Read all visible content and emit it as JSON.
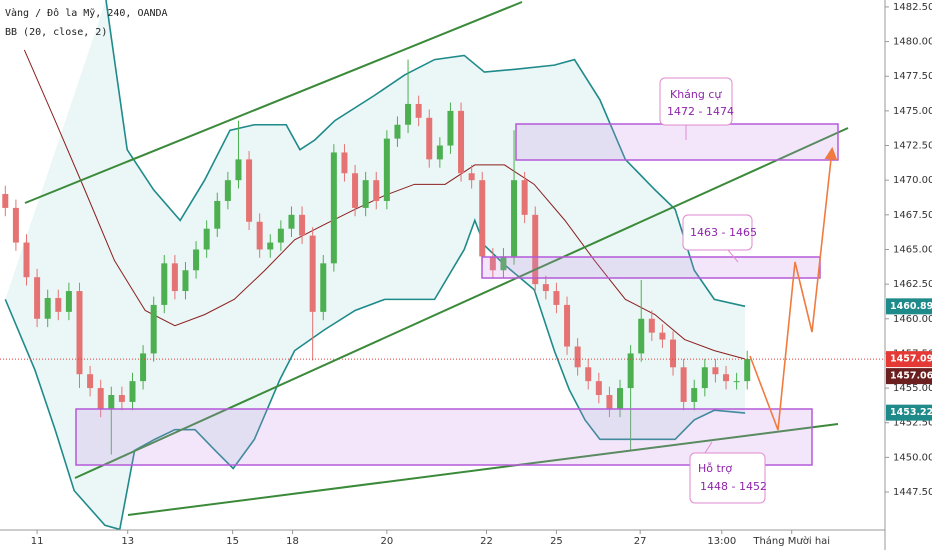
{
  "chart_data": {
    "type": "candlestick",
    "title": "Vàng / Đô la Mỹ, 240, OANDA",
    "subtitle": "BB (20, close, 2)",
    "up_color": "#4caf50",
    "down_color": "#e57373",
    "open": [
      1469.0,
      1468.0,
      1465.5,
      1463.0,
      1460.0,
      1461.5,
      1460.5,
      1462.0,
      1456.0,
      1455.0,
      1453.5,
      1454.5,
      1454.0,
      1455.5,
      1457.5,
      1461.0,
      1464.0,
      1462.0,
      1463.5,
      1465.0,
      1466.5,
      1468.5,
      1470.0,
      1471.5,
      1467.0,
      1465.0,
      1465.5,
      1466.5,
      1467.5,
      1466.0,
      1460.5,
      1464.0,
      1472.0,
      1470.5,
      1468.0,
      1470.0,
      1468.5,
      1473.0,
      1474.0,
      1475.5,
      1474.5,
      1471.5,
      1472.5,
      1475.0,
      1470.5,
      1470.0,
      1464.5,
      1463.5,
      1464.5,
      1470.0,
      1467.5,
      1462.5,
      1462.0,
      1461.0,
      1458.0,
      1456.5,
      1455.5,
      1454.5,
      1453.5,
      1455.0,
      1457.5,
      1460.0,
      1459.0,
      1458.5,
      1456.5,
      1454.0,
      1455.0,
      1456.5,
      1456.0,
      1455.5,
      1455.5
    ],
    "high": [
      1469.6,
      1468.6,
      1466.1,
      1463.6,
      1462.1,
      1462.1,
      1462.6,
      1462.6,
      1456.6,
      1455.6,
      1455.1,
      1455.1,
      1456.1,
      1458.1,
      1461.6,
      1464.6,
      1464.6,
      1464.1,
      1465.6,
      1467.1,
      1469.1,
      1470.6,
      1474.3,
      1472.1,
      1467.6,
      1466.1,
      1467.1,
      1468.1,
      1468.1,
      1466.6,
      1464.6,
      1472.6,
      1472.6,
      1471.1,
      1470.6,
      1470.6,
      1473.6,
      1474.6,
      1478.7,
      1476.1,
      1475.1,
      1473.1,
      1475.6,
      1475.6,
      1471.1,
      1470.6,
      1465.1,
      1465.1,
      1473.6,
      1470.6,
      1468.1,
      1463.1,
      1462.6,
      1461.6,
      1458.6,
      1457.1,
      1456.1,
      1455.1,
      1455.6,
      1458.1,
      1462.8,
      1460.6,
      1459.6,
      1459.1,
      1457.1,
      1455.6,
      1457.1,
      1457.1,
      1456.6,
      1456.1,
      1457.7
    ],
    "low": [
      1467.4,
      1464.9,
      1462.4,
      1459.4,
      1459.4,
      1459.9,
      1459.9,
      1455.0,
      1454.4,
      1452.9,
      1450.2,
      1453.4,
      1453.4,
      1454.9,
      1456.9,
      1460.4,
      1461.4,
      1461.4,
      1462.9,
      1464.4,
      1465.9,
      1467.9,
      1469.4,
      1466.4,
      1464.4,
      1464.4,
      1464.9,
      1465.9,
      1465.4,
      1457.0,
      1459.9,
      1463.4,
      1469.9,
      1467.4,
      1467.4,
      1467.9,
      1467.9,
      1472.4,
      1473.4,
      1473.9,
      1470.9,
      1470.9,
      1471.9,
      1469.9,
      1469.4,
      1463.9,
      1462.9,
      1462.9,
      1463.9,
      1466.9,
      1461.9,
      1461.4,
      1460.4,
      1457.4,
      1455.9,
      1454.9,
      1453.9,
      1452.9,
      1452.9,
      1450.5,
      1456.9,
      1458.4,
      1457.9,
      1455.9,
      1453.4,
      1453.4,
      1454.4,
      1455.4,
      1454.9,
      1454.9,
      1454.9
    ],
    "close": [
      1468.0,
      1465.5,
      1463.0,
      1460.0,
      1461.5,
      1460.5,
      1462.0,
      1456.0,
      1455.0,
      1453.5,
      1454.5,
      1454.0,
      1455.5,
      1457.5,
      1461.0,
      1464.0,
      1462.0,
      1463.5,
      1465.0,
      1466.5,
      1468.5,
      1470.0,
      1471.5,
      1467.0,
      1465.0,
      1465.5,
      1466.5,
      1467.5,
      1466.0,
      1460.5,
      1464.0,
      1472.0,
      1470.5,
      1468.0,
      1470.0,
      1468.5,
      1473.0,
      1474.0,
      1475.5,
      1474.5,
      1471.5,
      1472.5,
      1475.0,
      1470.5,
      1470.0,
      1464.5,
      1463.5,
      1464.5,
      1470.0,
      1467.5,
      1462.5,
      1462.0,
      1461.0,
      1458.0,
      1456.5,
      1455.5,
      1454.5,
      1453.5,
      1455.0,
      1457.5,
      1460.0,
      1459.0,
      1458.5,
      1456.5,
      1454.0,
      1455.0,
      1456.5,
      1456.0,
      1455.5,
      1455.5,
      1457.1
    ],
    "xlim": [
      0,
      83.5
    ],
    "xticks": [
      {
        "value": 3.5,
        "label": "11"
      },
      {
        "value": 12.05,
        "label": "13"
      },
      {
        "value": 21.95,
        "label": "15"
      },
      {
        "value": 27.6,
        "label": "18"
      },
      {
        "value": 36.5,
        "label": "20"
      },
      {
        "value": 45.9,
        "label": "22"
      },
      {
        "value": 52.5,
        "label": "25"
      },
      {
        "value": 60.4,
        "label": "27"
      },
      {
        "value": 68.1,
        "label": "13:00"
      },
      {
        "value": 74.7,
        "label": "Tháng Mười hai"
      }
    ],
    "ylim": [
      1444.76,
      1483.0
    ],
    "yticks": [
      {
        "value": 1447.5,
        "label": "1447.500"
      },
      {
        "value": 1450,
        "label": "1450.000"
      },
      {
        "value": 1452.5,
        "label": "1452.500"
      },
      {
        "value": 1455,
        "label": "1455.000"
      },
      {
        "value": 1457.5,
        "label": "1457.500"
      },
      {
        "value": 1460,
        "label": "1460.000"
      },
      {
        "value": 1462.5,
        "label": "1462.500"
      },
      {
        "value": 1465,
        "label": "1465.000"
      },
      {
        "value": 1467.5,
        "label": "1467.500"
      },
      {
        "value": 1470,
        "label": "1470.000"
      },
      {
        "value": 1472.5,
        "label": "1472.500"
      },
      {
        "value": 1475,
        "label": "1475.000"
      },
      {
        "value": 1477.5,
        "label": "1477.500"
      },
      {
        "value": 1480,
        "label": "1480.000"
      },
      {
        "value": 1482.5,
        "label": "1482.500"
      }
    ],
    "band_fill": "rgba(38,150,150,0.09)",
    "bands": [
      {
        "color": "#1f8a8a",
        "x": [
          10,
          12,
          14.5,
          17,
          19.3,
          21.7,
          24,
          27,
          28.3,
          29.7,
          31.6,
          35.3,
          38.2,
          41,
          43.8,
          45.7,
          48.6,
          52.3,
          54.2,
          56.6,
          59,
          61.8,
          63.7,
          65.5,
          67.4,
          70.3
        ],
        "values": [
          1483.0,
          1472.2,
          1469.3,
          1467.1,
          1470.0,
          1473.6,
          1474.0,
          1474.0,
          1472.2,
          1472.9,
          1474.3,
          1476.1,
          1477.6,
          1478.7,
          1479.0,
          1477.8,
          1478.0,
          1478.3,
          1478.7,
          1475.8,
          1471.5,
          1469.3,
          1467.9,
          1463.5,
          1461.4,
          1460.9
        ]
      },
      {
        "color": "#8b1f1f",
        "x": [
          2.3,
          5.2,
          8,
          10.8,
          13.7,
          16.5,
          19.3,
          22.1,
          25,
          27.8,
          30.6,
          33.5,
          36.3,
          39.1,
          42,
          44.8,
          47.6,
          50.4,
          53.3,
          56.1,
          59,
          61.8,
          64.6,
          67.4,
          70.3
        ],
        "values": [
          1479.4,
          1474.3,
          1469.3,
          1464.2,
          1460.6,
          1459.5,
          1460.3,
          1461.4,
          1463.5,
          1465.7,
          1466.8,
          1467.9,
          1468.9,
          1469.7,
          1469.7,
          1471.1,
          1471.1,
          1469.7,
          1467.1,
          1464.2,
          1461.4,
          1460.3,
          1458.5,
          1457.7,
          1457.1
        ]
      },
      {
        "color": "#1f8a8a",
        "x": [
          0.5,
          3.3,
          5.2,
          7,
          9.9,
          11.3,
          12.7,
          14.6,
          16.5,
          18.4,
          20.3,
          22,
          24,
          26.4,
          27.8,
          30.6,
          33.5,
          36.3,
          39.1,
          41,
          43.8,
          44.8,
          45.7,
          47.6,
          50.4,
          52.3,
          53.7,
          55.2,
          56.6,
          59,
          61.8,
          63.7,
          65.5,
          67.4,
          70.3
        ],
        "values": [
          1461.4,
          1456.3,
          1452.0,
          1447.6,
          1445.1,
          1444.8,
          1450.5,
          1451.3,
          1452.0,
          1452.0,
          1450.5,
          1449.2,
          1451.3,
          1455.6,
          1457.7,
          1459.2,
          1460.6,
          1461.4,
          1461.4,
          1461.4,
          1465.0,
          1467.1,
          1465.3,
          1463.9,
          1462.1,
          1457.7,
          1454.9,
          1452.7,
          1451.3,
          1451.3,
          1451.3,
          1451.3,
          1452.7,
          1453.4,
          1453.2
        ]
      }
    ],
    "price_tags": [
      {
        "value": 1460.897,
        "label": "1460.897",
        "color": "#1f8a8a"
      },
      {
        "value": 1457.09,
        "label": "1457.090",
        "color": "#e53935",
        "line": true
      },
      {
        "value": 1457.062,
        "label": "1457.062",
        "color": "#6b1f1f"
      },
      {
        "value": 1453.227,
        "label": "1453.227",
        "color": "#1f8a8a"
      }
    ],
    "annotations": [
      {
        "lines": [
          "Kháng cự",
          "1472 - 1474"
        ]
      },
      {
        "lines": [
          "1463 - 1465"
        ]
      },
      {
        "lines": [
          "Hỗ trợ",
          "1448 - 1452"
        ]
      }
    ]
  }
}
